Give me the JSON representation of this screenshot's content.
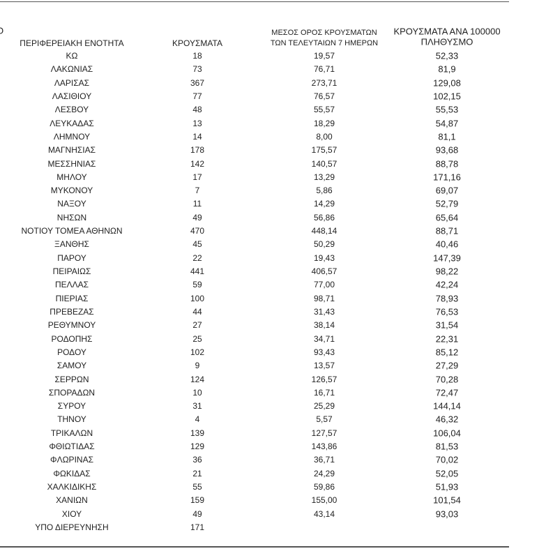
{
  "header": {
    "fragment": "Ο",
    "columns": [
      [
        "ΠΕΡΙΦΕΡΕΙΑΚΗ ΕΝΟΤΗΤΑ"
      ],
      [
        "ΚΡΟΥΣΜΑΤΑ"
      ],
      [
        "ΜΕΣΟΣ ΟΡΟΣ ΚΡΟΥΣΜΑΤΩΝ",
        "ΤΩΝ ΤΕΛΕΥΤΑΙΩΝ 7 ΗΜΕΡΩΝ"
      ],
      [
        "ΚΡΟΥΣΜΑΤΑ ΑΝΑ 100000",
        "ΠΛΗΘΥΣΜΟ"
      ]
    ]
  },
  "table": {
    "rows": [
      [
        "ΚΩ",
        "18",
        "19,57",
        "52,33"
      ],
      [
        "ΛΑΚΩΝΙΑΣ",
        "73",
        "76,71",
        "81,9"
      ],
      [
        "ΛΑΡΙΣΑΣ",
        "367",
        "273,71",
        "129,08"
      ],
      [
        "ΛΑΣΙΘΙΟΥ",
        "77",
        "76,57",
        "102,15"
      ],
      [
        "ΛΕΣΒΟΥ",
        "48",
        "55,57",
        "55,53"
      ],
      [
        "ΛΕΥΚΑΔΑΣ",
        "13",
        "18,29",
        "54,87"
      ],
      [
        "ΛΗΜΝΟΥ",
        "14",
        "8,00",
        "81,1"
      ],
      [
        "ΜΑΓΝΗΣΙΑΣ",
        "178",
        "175,57",
        "93,68"
      ],
      [
        "ΜΕΣΣΗΝΙΑΣ",
        "142",
        "140,57",
        "88,78"
      ],
      [
        "ΜΗΛΟΥ",
        "17",
        "13,29",
        "171,16"
      ],
      [
        "ΜΥΚΟΝΟΥ",
        "7",
        "5,86",
        "69,07"
      ],
      [
        "ΝΑΞΟΥ",
        "11",
        "14,29",
        "52,79"
      ],
      [
        "ΝΗΣΩΝ",
        "49",
        "56,86",
        "65,64"
      ],
      [
        "ΝΟΤΙΟΥ ΤΟΜΕΑ ΑΘΗΝΩΝ",
        "470",
        "448,14",
        "88,71"
      ],
      [
        "ΞΑΝΘΗΣ",
        "45",
        "50,29",
        "40,46"
      ],
      [
        "ΠΑΡΟΥ",
        "22",
        "19,43",
        "147,39"
      ],
      [
        "ΠΕΙΡΑΙΩΣ",
        "441",
        "406,57",
        "98,22"
      ],
      [
        "ΠΕΛΛΑΣ",
        "59",
        "77,00",
        "42,24"
      ],
      [
        "ΠΙΕΡΙΑΣ",
        "100",
        "98,71",
        "78,93"
      ],
      [
        "ΠΡΕΒΕΖΑΣ",
        "44",
        "31,43",
        "76,53"
      ],
      [
        "ΡΕΘΥΜΝΟΥ",
        "27",
        "38,14",
        "31,54"
      ],
      [
        "ΡΟΔΟΠΗΣ",
        "25",
        "34,71",
        "22,31"
      ],
      [
        "ΡΟΔΟΥ",
        "102",
        "93,43",
        "85,12"
      ],
      [
        "ΣΑΜΟΥ",
        "9",
        "13,57",
        "27,29"
      ],
      [
        "ΣΕΡΡΩΝ",
        "124",
        "126,57",
        "70,28"
      ],
      [
        "ΣΠΟΡΑΔΩΝ",
        "10",
        "16,71",
        "72,47"
      ],
      [
        "ΣΥΡΟΥ",
        "31",
        "25,29",
        "144,14"
      ],
      [
        "ΤΗΝΟΥ",
        "4",
        "5,57",
        "46,32"
      ],
      [
        "ΤΡΙΚΑΛΩΝ",
        "139",
        "127,57",
        "106,04"
      ],
      [
        "ΦΘΙΩΤΙΔΑΣ",
        "129",
        "143,86",
        "81,53"
      ],
      [
        "ΦΛΩΡΙΝΑΣ",
        "36",
        "36,71",
        "70,02"
      ],
      [
        "ΦΩΚΙΔΑΣ",
        "21",
        "24,29",
        "52,05"
      ],
      [
        "ΧΑΛΚΙΔΙΚΗΣ",
        "55",
        "59,86",
        "51,93"
      ],
      [
        "ΧΑΝΙΩΝ",
        "159",
        "155,00",
        "101,54"
      ],
      [
        "ΧΙΟΥ",
        "49",
        "43,14",
        "93,03"
      ],
      [
        "ΥΠΟ ΔΙΕΡΕΥΝΗΣΗ",
        "171"
      ]
    ]
  }
}
